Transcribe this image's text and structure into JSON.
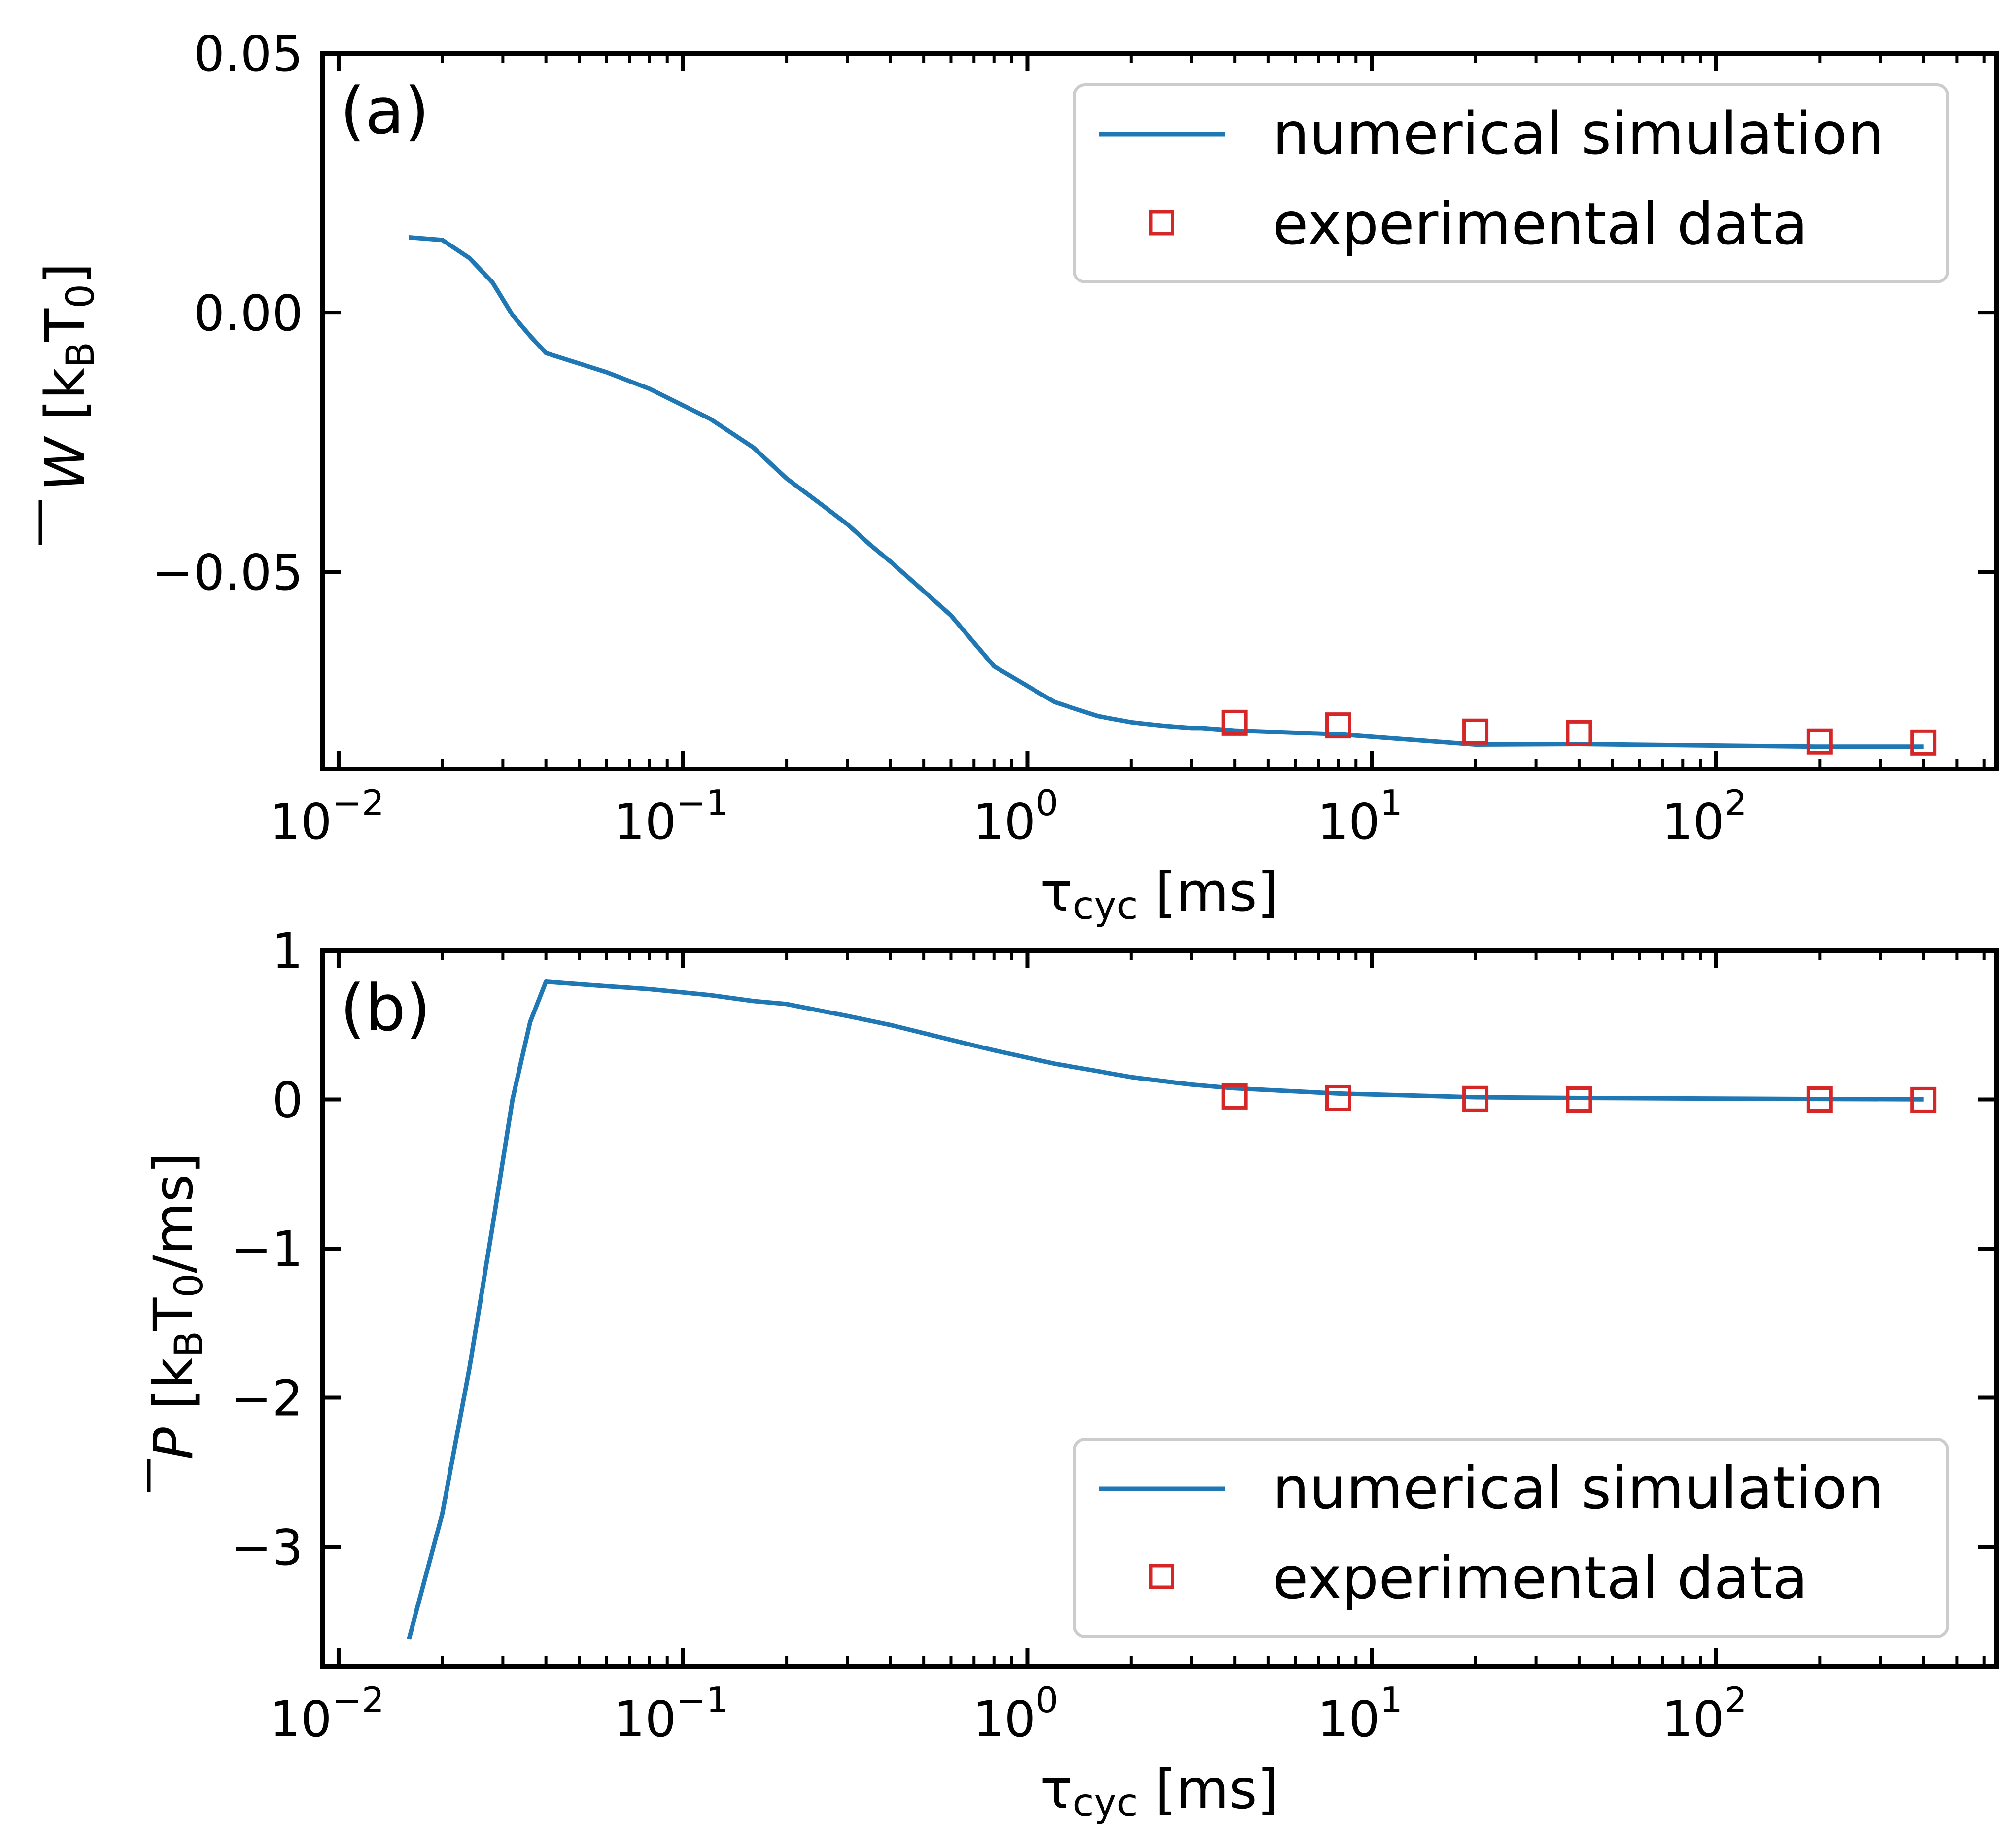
{
  "colors": {
    "simulation": "#1f77b4",
    "experiment": "#d62728",
    "axis": "#000000",
    "legend_border": "#cccccc"
  },
  "chart_data": [
    {
      "type": "line",
      "panel_label": "(a)",
      "xscale": "log",
      "xlim": [
        0.009,
        650
      ],
      "ylim": [
        -0.088,
        0.05
      ],
      "xlabel": "τ",
      "xlabel_sub": "cyc",
      "xlabel_unit": " [ms]",
      "ylabel": "W",
      "ylabel_unit": " [k",
      "ylabel_sub1": "B",
      "ylabel_mid": "T",
      "ylabel_sub2": "0",
      "ylabel_end": "]",
      "xticks": [
        {
          "value": 0.01,
          "base": "10",
          "exp": "−2"
        },
        {
          "value": 0.1,
          "base": "10",
          "exp": "−1"
        },
        {
          "value": 1,
          "base": "10",
          "exp": "0"
        },
        {
          "value": 10,
          "base": "10",
          "exp": "1"
        },
        {
          "value": 100,
          "base": "10",
          "exp": "2"
        }
      ],
      "yticks": [
        {
          "value": 0.05,
          "label": "0.05"
        },
        {
          "value": 0.0,
          "label": "0.00"
        },
        {
          "value": -0.05,
          "label": "−0.05"
        }
      ],
      "legend_position": "top-right",
      "series": [
        {
          "name": "numerical simulation",
          "kind": "line",
          "x": [
            0.016,
            0.02,
            0.024,
            0.028,
            0.032,
            0.036,
            0.04,
            0.06,
            0.08,
            0.12,
            0.16,
            0.2,
            0.25,
            0.3,
            0.35,
            0.4,
            0.5,
            0.6,
            0.8,
            1.2,
            1.6,
            2.0,
            2.5,
            3.0,
            3.2,
            4.0,
            8.0,
            20,
            40,
            200,
            400
          ],
          "y": [
            0.0145,
            0.014,
            0.0105,
            0.0058,
            -0.0005,
            -0.0045,
            -0.0078,
            -0.0115,
            -0.0147,
            -0.0205,
            -0.026,
            -0.032,
            -0.0368,
            -0.0408,
            -0.0448,
            -0.048,
            -0.0537,
            -0.0584,
            -0.0682,
            -0.0751,
            -0.0778,
            -0.079,
            -0.0797,
            -0.0801,
            -0.0801,
            -0.0806,
            -0.0813,
            -0.0833,
            -0.0832,
            -0.0837,
            -0.0837
          ]
        },
        {
          "name": "experimental data",
          "kind": "markers",
          "x": [
            4,
            8,
            20,
            40,
            200,
            400
          ],
          "y": [
            -0.0791,
            -0.0796,
            -0.0808,
            -0.0811,
            -0.0827,
            -0.0829
          ]
        }
      ]
    },
    {
      "type": "line",
      "panel_label": "(b)",
      "xscale": "log",
      "xlim": [
        0.009,
        650
      ],
      "ylim": [
        -3.8,
        1.0
      ],
      "xlabel": "τ",
      "xlabel_sub": "cyc",
      "xlabel_unit": " [ms]",
      "ylabel": "P",
      "ylabel_unit": " [k",
      "ylabel_sub1": "B",
      "ylabel_mid": "T",
      "ylabel_sub2": "0",
      "ylabel_end": "/ms]",
      "xticks": [
        {
          "value": 0.01,
          "base": "10",
          "exp": "−2"
        },
        {
          "value": 0.1,
          "base": "10",
          "exp": "−1"
        },
        {
          "value": 1,
          "base": "10",
          "exp": "0"
        },
        {
          "value": 10,
          "base": "10",
          "exp": "1"
        },
        {
          "value": 100,
          "base": "10",
          "exp": "2"
        }
      ],
      "yticks": [
        {
          "value": 1,
          "label": "1"
        },
        {
          "value": 0,
          "label": "0"
        },
        {
          "value": -1,
          "label": "−1"
        },
        {
          "value": -2,
          "label": "−2"
        },
        {
          "value": -3,
          "label": "−3"
        }
      ],
      "legend_position": "bottom-right",
      "series": [
        {
          "name": "numerical simulation",
          "kind": "line",
          "x": [
            0.016,
            0.02,
            0.024,
            0.028,
            0.032,
            0.036,
            0.04,
            0.06,
            0.08,
            0.12,
            0.16,
            0.2,
            0.3,
            0.4,
            0.6,
            0.8,
            1.2,
            1.6,
            2,
            3,
            4,
            8,
            20,
            40,
            200,
            400
          ],
          "y": [
            -3.62,
            -2.78,
            -1.8,
            -0.85,
            0.0,
            0.52,
            0.79,
            0.76,
            0.74,
            0.7,
            0.66,
            0.64,
            0.56,
            0.5,
            0.4,
            0.33,
            0.24,
            0.19,
            0.15,
            0.1,
            0.075,
            0.04,
            0.015,
            0.01,
            0.003,
            0.001
          ]
        },
        {
          "name": "experimental data",
          "kind": "markers",
          "x": [
            4,
            8,
            20,
            40,
            200,
            400
          ],
          "y": [
            0.02,
            0.01,
            0.004,
            0.0,
            0.0,
            -0.003
          ]
        }
      ]
    }
  ]
}
